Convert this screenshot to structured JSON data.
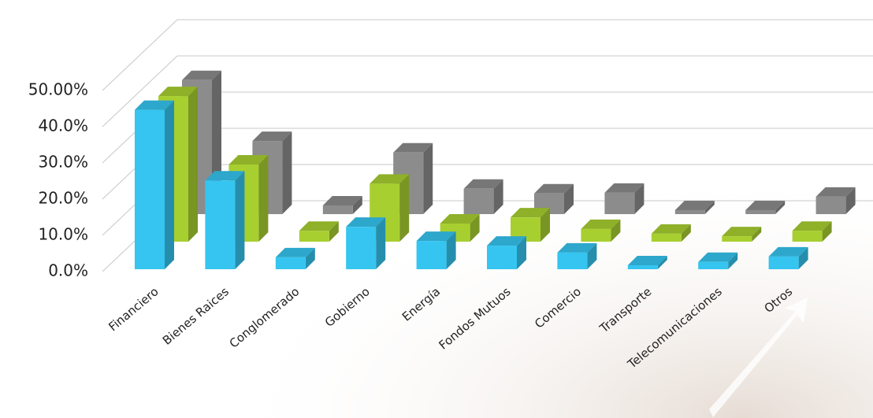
{
  "chart_data": {
    "type": "bar3d",
    "categories": [
      "Financiero",
      "Bienes Raices",
      "Conglomerado",
      "Gobierno",
      "Energía",
      "Fondos Mutuos",
      "Comercio",
      "Transporte",
      "Telecomunicaciones",
      "Otros"
    ],
    "series": [
      {
        "color": "#35c5f0",
        "values": [
          44,
          24.5,
          3.3,
          11.7,
          7.8,
          6.5,
          4.6,
          1.1,
          2,
          3.5
        ]
      },
      {
        "color": "#a8cf30",
        "values": [
          40.2,
          21.3,
          3,
          16,
          5,
          6.7,
          3.5,
          2.2,
          1.5,
          3
        ]
      },
      {
        "color": "#8c8c8c",
        "values": [
          37,
          20.2,
          2.4,
          17,
          7,
          5.7,
          5.9,
          1.1,
          1.1,
          4.8
        ]
      }
    ],
    "ylim": [
      0,
      50
    ],
    "yticks": [
      {
        "value": 0,
        "label": "0.0%"
      },
      {
        "value": 10,
        "label": "10.0%"
      },
      {
        "value": 20,
        "label": "20.0%"
      },
      {
        "value": 30,
        "label": "30.0%"
      },
      {
        "value": 40,
        "label": "40.0%"
      },
      {
        "value": 50,
        "label": "50.00%"
      }
    ],
    "grid": true
  }
}
